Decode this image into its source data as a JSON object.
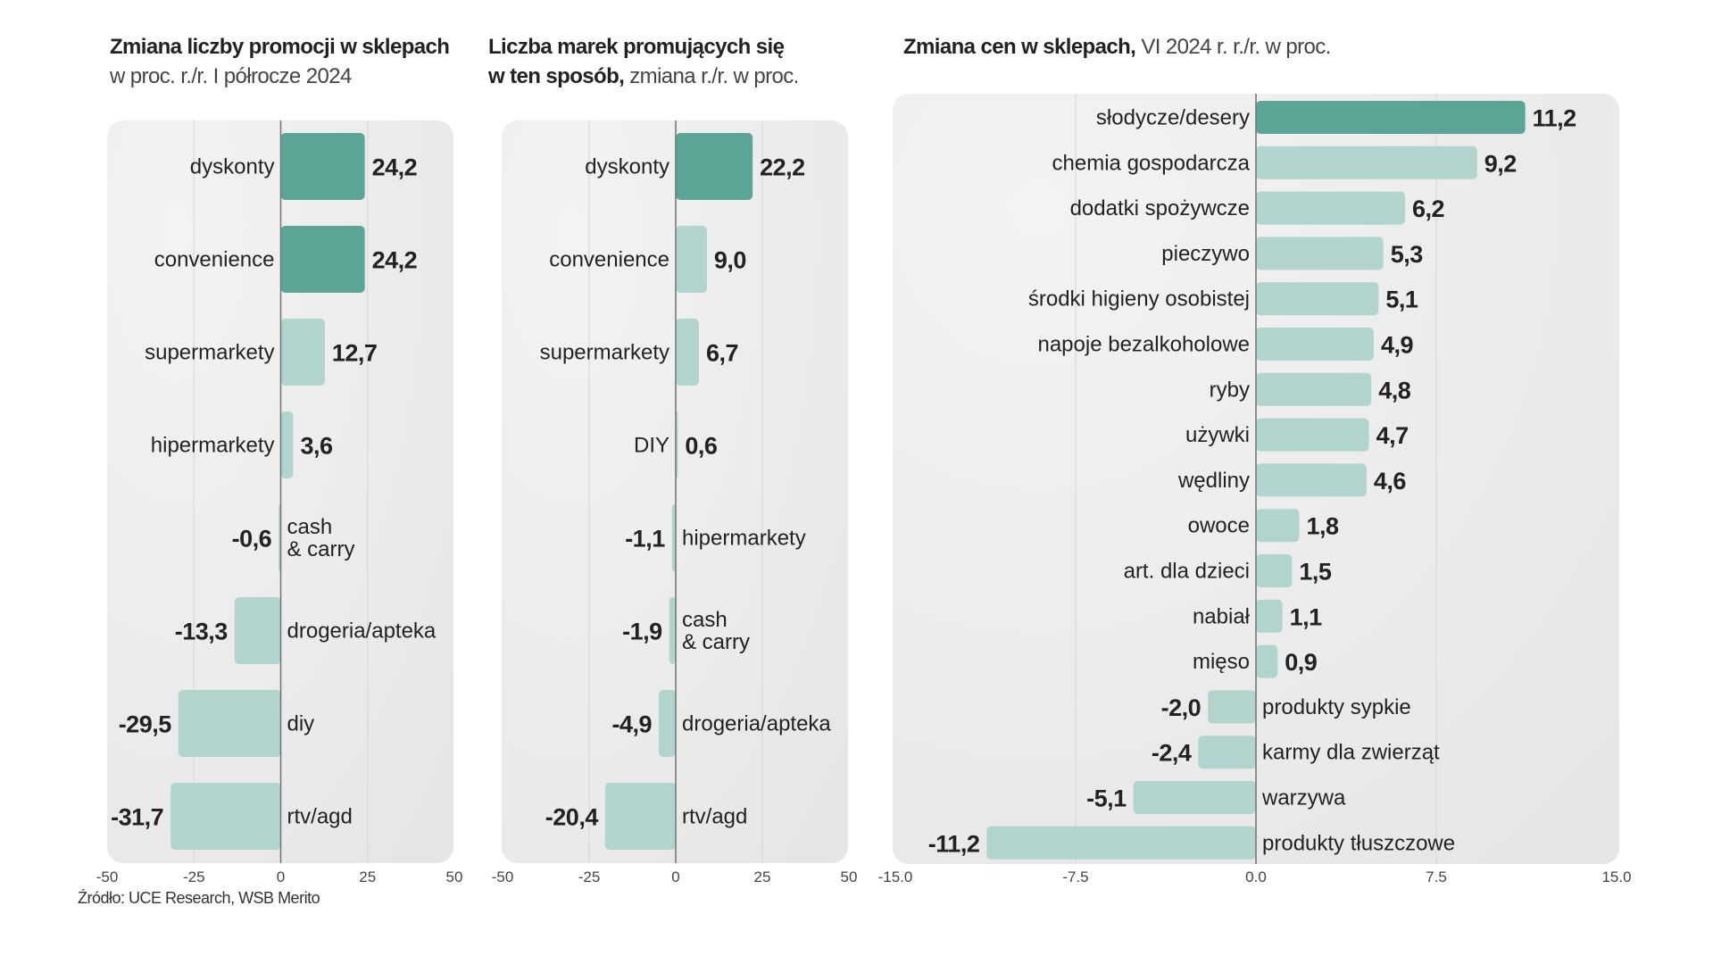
{
  "titles": {
    "promotions": {
      "bold": "Zmiana liczby promocji w sklepach",
      "light": "w proc. r./r. I półrocze 2024"
    },
    "brands": {
      "bold_line1": "Liczba marek promujących się",
      "bold_line2": "w ten sposób,",
      "light": " zmiana  r./r.  w proc."
    },
    "prices": {
      "bold": "Zmiana cen w sklepach,",
      "light": " VI 2024 r. r./r. w proc."
    }
  },
  "source": "Źródło: UCE Research, WSB Merito",
  "colors": {
    "highlight": "#5ba596",
    "bar": "#b2d4ce",
    "panel": "#ebebeb",
    "zero_line": "#777777",
    "grid": "#d9d9d9"
  },
  "chart_data": [
    {
      "id": "promotions",
      "type": "bar",
      "orientation": "horizontal",
      "title": "Zmiana liczby promocji w sklepach",
      "subtitle": "w proc. r./r. I półrocze 2024",
      "categories": [
        "dyskonty",
        "convenience",
        "supermarkety",
        "hipermarkety",
        "cash\n& carry",
        "drogeria/apteka",
        "diy",
        "rtv/agd"
      ],
      "values": [
        24.2,
        24.2,
        12.7,
        3.6,
        -0.6,
        -13.3,
        -29.5,
        -31.7
      ],
      "value_labels": [
        "24,2",
        "24,2",
        "12,7",
        "3,6",
        "-0,6",
        "-13,3",
        "-29,5",
        "-31,7"
      ],
      "highlighted": [
        0,
        1
      ],
      "xlim": [
        -50,
        50
      ],
      "xticks": [
        -50,
        -25,
        0,
        25,
        50
      ],
      "xtick_labels": [
        "-50",
        "-25",
        "0",
        "25",
        "50"
      ],
      "grid": true
    },
    {
      "id": "brands",
      "type": "bar",
      "orientation": "horizontal",
      "title": "Liczba marek promujących się w ten sposób",
      "subtitle": "zmiana r./r. w proc.",
      "categories": [
        "dyskonty",
        "convenience",
        "supermarkety",
        "DIY",
        "hipermarkety",
        "cash\n& carry",
        "drogeria/apteka",
        "rtv/agd"
      ],
      "values": [
        22.2,
        9.0,
        6.7,
        0.6,
        -1.1,
        -1.9,
        -4.9,
        -20.4
      ],
      "value_labels": [
        "22,2",
        "9,0",
        "6,7",
        "0,6",
        "-1,1",
        "-1,9",
        "-4,9",
        "-20,4"
      ],
      "highlighted": [
        0
      ],
      "xlim": [
        -50,
        50
      ],
      "xticks": [
        -50,
        -25,
        0,
        25,
        50
      ],
      "xtick_labels": [
        "-50",
        "-25",
        "0",
        "25",
        "50"
      ],
      "grid": true
    },
    {
      "id": "prices",
      "type": "bar",
      "orientation": "horizontal",
      "title": "Zmiana cen w sklepach",
      "subtitle": "VI 2024 r. r./r. w proc.",
      "categories": [
        "słodycze/desery",
        "chemia gospodarcza",
        "dodatki spożywcze",
        "pieczywo",
        "środki higieny osobistej",
        "napoje bezalkoholowe",
        "ryby",
        "używki",
        "wędliny",
        "owoce",
        "art. dla dzieci",
        "nabiał",
        "mięso",
        "produkty sypkie",
        "karmy dla zwierząt",
        "warzywa",
        "produkty tłuszczowe"
      ],
      "values": [
        11.2,
        9.2,
        6.2,
        5.3,
        5.1,
        4.9,
        4.8,
        4.7,
        4.6,
        1.8,
        1.5,
        1.1,
        0.9,
        -2.0,
        -2.4,
        -5.1,
        -11.2
      ],
      "value_labels": [
        "11,2",
        "9,2",
        "6,2",
        "5,3",
        "5,1",
        "4,9",
        "4,8",
        "4,7",
        "4,6",
        "1,8",
        "1,5",
        "1,1",
        "0,9",
        "-2,0",
        "-2,4",
        "-5,1",
        "-11,2"
      ],
      "highlighted": [
        0
      ],
      "xlim": [
        -15,
        15
      ],
      "xticks": [
        -15,
        -7.5,
        0,
        7.5,
        15
      ],
      "xtick_labels": [
        "-15.0",
        "-7.5",
        "0.0",
        "7.5",
        "15.0"
      ],
      "grid": true
    }
  ]
}
